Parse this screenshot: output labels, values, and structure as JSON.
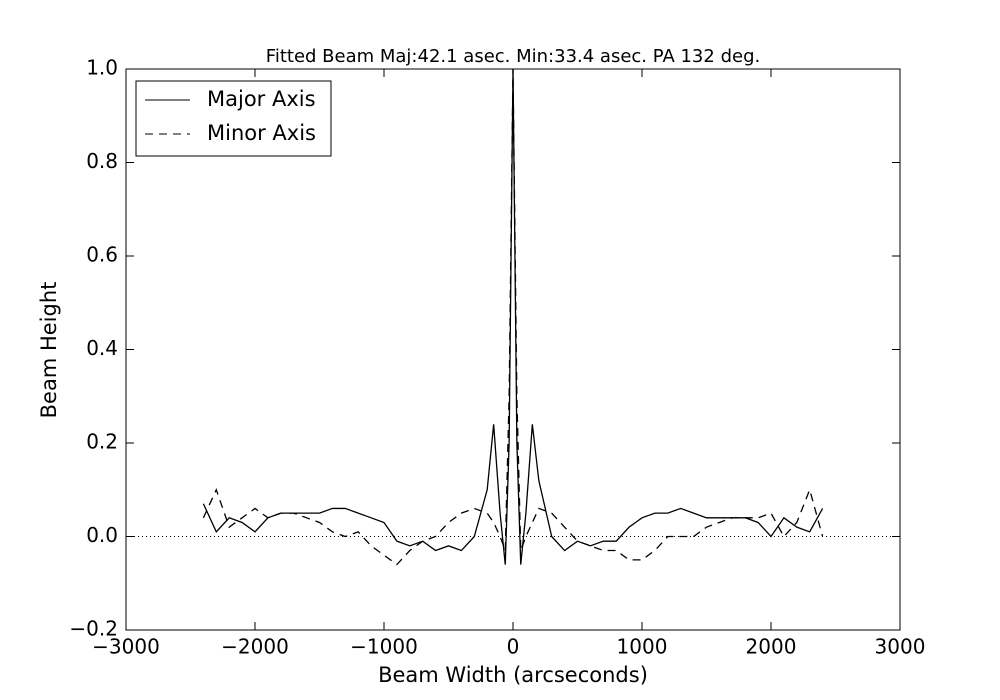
{
  "chart_data": {
    "type": "line",
    "title": "Fitted Beam Maj:42.1 asec. Min:33.4 asec. PA 132 deg.",
    "xlabel": "Beam Width (arcseconds)",
    "ylabel": "Beam Height",
    "x": [
      -2400,
      -2300,
      -2200,
      -2100,
      -2000,
      -1900,
      -1800,
      -1700,
      -1600,
      -1500,
      -1400,
      -1300,
      -1200,
      -1100,
      -1000,
      -900,
      -800,
      -700,
      -600,
      -500,
      -400,
      -300,
      -200,
      -150,
      -100,
      -60,
      -30,
      -15,
      0,
      15,
      30,
      60,
      100,
      150,
      200,
      300,
      400,
      500,
      600,
      700,
      800,
      900,
      1000,
      1100,
      1200,
      1300,
      1400,
      1500,
      1600,
      1700,
      1800,
      1900,
      2000,
      2100,
      2200,
      2300,
      2400
    ],
    "series": [
      {
        "name": "Major Axis",
        "color": "#000000",
        "linestyle": "solid",
        "values": [
          0.07,
          0.01,
          0.04,
          0.03,
          0.01,
          0.04,
          0.05,
          0.05,
          0.05,
          0.05,
          0.06,
          0.06,
          0.05,
          0.04,
          0.03,
          -0.01,
          -0.02,
          -0.01,
          -0.03,
          -0.02,
          -0.03,
          0.0,
          0.1,
          0.24,
          0.05,
          -0.06,
          0.2,
          0.6,
          1.0,
          0.6,
          0.2,
          -0.06,
          0.05,
          0.24,
          0.12,
          0.0,
          -0.03,
          -0.01,
          -0.02,
          -0.01,
          -0.01,
          0.02,
          0.04,
          0.05,
          0.05,
          0.06,
          0.05,
          0.04,
          0.04,
          0.04,
          0.04,
          0.03,
          0.0,
          0.04,
          0.02,
          0.01,
          0.06
        ]
      },
      {
        "name": "Minor Axis",
        "color": "#000000",
        "linestyle": "dashed",
        "values": [
          0.04,
          0.1,
          0.02,
          0.04,
          0.06,
          0.04,
          0.05,
          0.05,
          0.04,
          0.03,
          0.01,
          0.0,
          0.01,
          -0.02,
          -0.04,
          -0.06,
          -0.03,
          -0.01,
          0.0,
          0.03,
          0.05,
          0.06,
          0.05,
          0.03,
          0.0,
          -0.03,
          0.3,
          0.65,
          1.0,
          0.65,
          0.3,
          -0.03,
          0.0,
          0.03,
          0.06,
          0.05,
          0.02,
          -0.01,
          -0.02,
          -0.03,
          -0.03,
          -0.05,
          -0.05,
          -0.03,
          0.0,
          0.0,
          0.0,
          0.02,
          0.03,
          0.04,
          0.04,
          0.04,
          0.05,
          0.0,
          0.03,
          0.1,
          0.0
        ]
      }
    ],
    "xlim": [
      -3000,
      3000
    ],
    "xticks": [
      {
        "value": -3000,
        "label": "−3000"
      },
      {
        "value": -2000,
        "label": "−2000"
      },
      {
        "value": -1000,
        "label": "−1000"
      },
      0,
      1000,
      2000,
      3000
    ],
    "ylim": [
      -0.2,
      1.0
    ],
    "yticks": [
      {
        "value": -0.2,
        "label": "−0.2"
      },
      {
        "value": 0,
        "label": "0.0"
      },
      {
        "value": 0.2,
        "label": "0.2"
      },
      {
        "value": 0.4,
        "label": "0.4"
      },
      {
        "value": 0.6,
        "label": "0.6"
      },
      {
        "value": 0.8,
        "label": "0.8"
      },
      {
        "value": 1.0,
        "label": "1.0"
      }
    ],
    "zero_line": true,
    "legend": "upper left"
  }
}
